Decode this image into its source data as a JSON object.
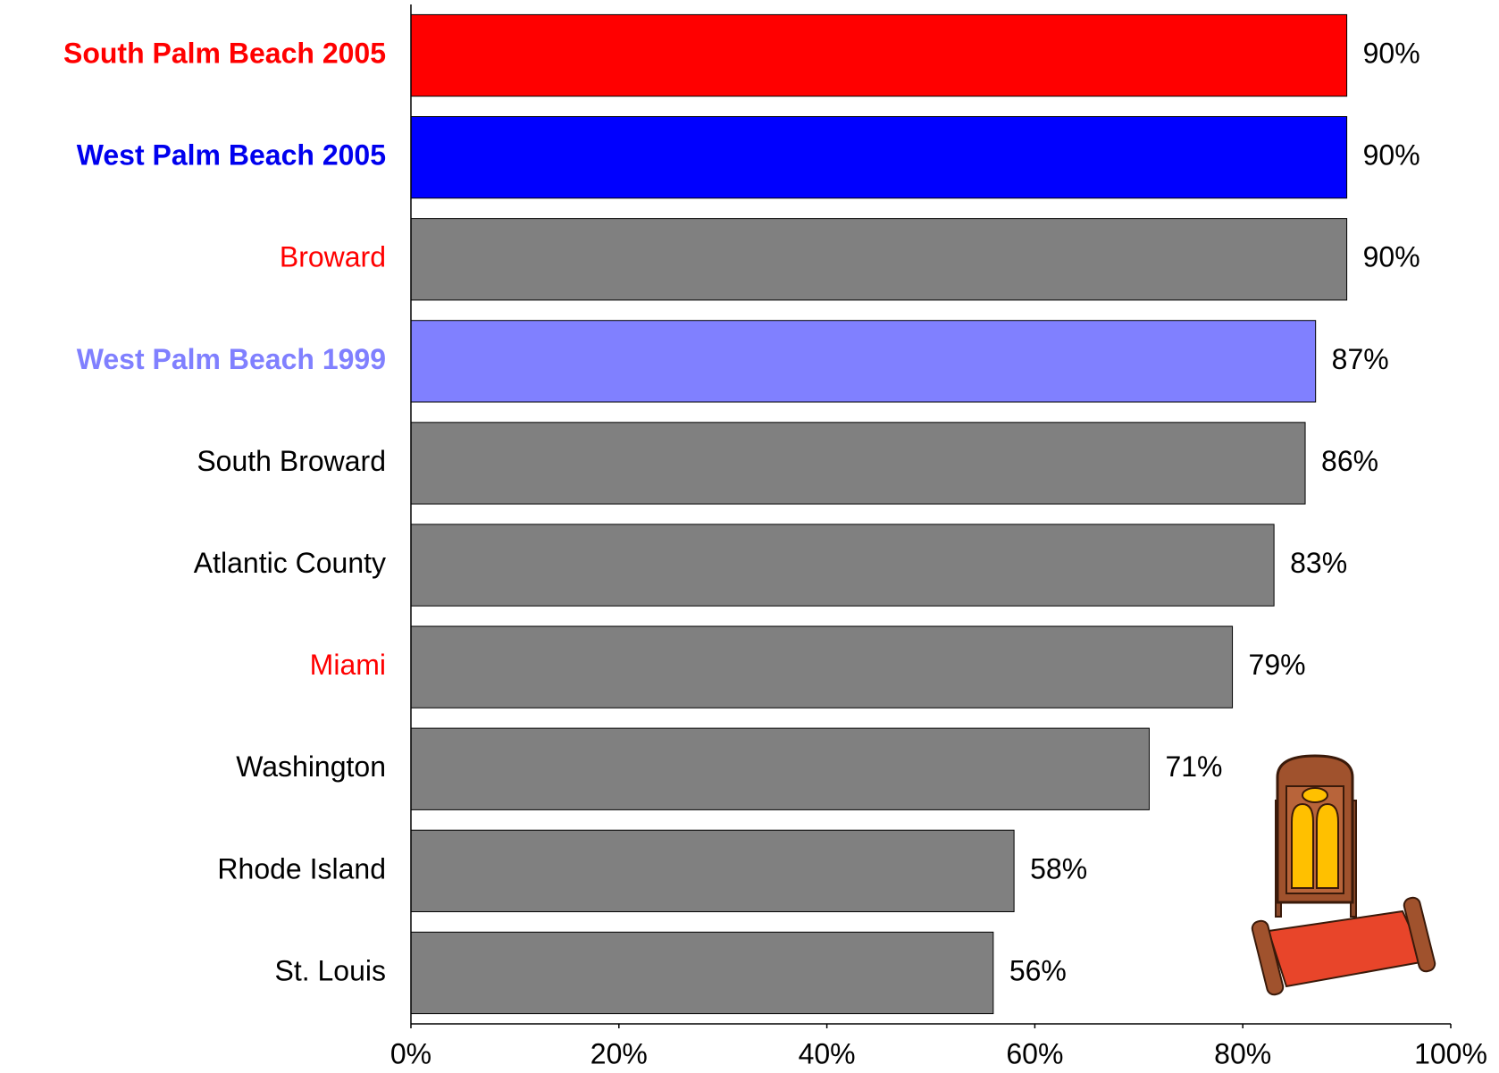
{
  "chart_data": {
    "type": "bar",
    "orientation": "horizontal",
    "categories": [
      "South Palm Beach 2005",
      "West Palm Beach 2005",
      "Broward",
      "West Palm Beach 1999",
      "South Broward",
      "Atlantic County",
      "Miami",
      "Washington",
      "Rhode Island",
      "St. Louis"
    ],
    "category_colors": [
      "#ff0000",
      "#0000ee",
      "#ff0000",
      "#8080ff",
      "#000000",
      "#000000",
      "#ff0000",
      "#000000",
      "#000000",
      "#000000"
    ],
    "category_bold": [
      true,
      true,
      false,
      true,
      false,
      false,
      false,
      false,
      false,
      false
    ],
    "values": [
      90,
      90,
      90,
      87,
      86,
      83,
      79,
      71,
      58,
      56
    ],
    "value_labels": [
      "90%",
      "90%",
      "90%",
      "87%",
      "86%",
      "83%",
      "79%",
      "71%",
      "58%",
      "56%"
    ],
    "colors": [
      "#ff0000",
      "#0000ff",
      "#808080",
      "#8080ff",
      "#808080",
      "#808080",
      "#808080",
      "#808080",
      "#808080",
      "#808080"
    ],
    "xlim": [
      0,
      100
    ],
    "xticks": [
      {
        "value": 0,
        "label": "0%"
      },
      {
        "value": 20,
        "label": "20%"
      },
      {
        "value": 40,
        "label": "40%"
      },
      {
        "value": 60,
        "label": "60%"
      },
      {
        "value": 80,
        "label": "80%"
      },
      {
        "value": 100,
        "label": "100%"
      }
    ],
    "grid": false
  }
}
